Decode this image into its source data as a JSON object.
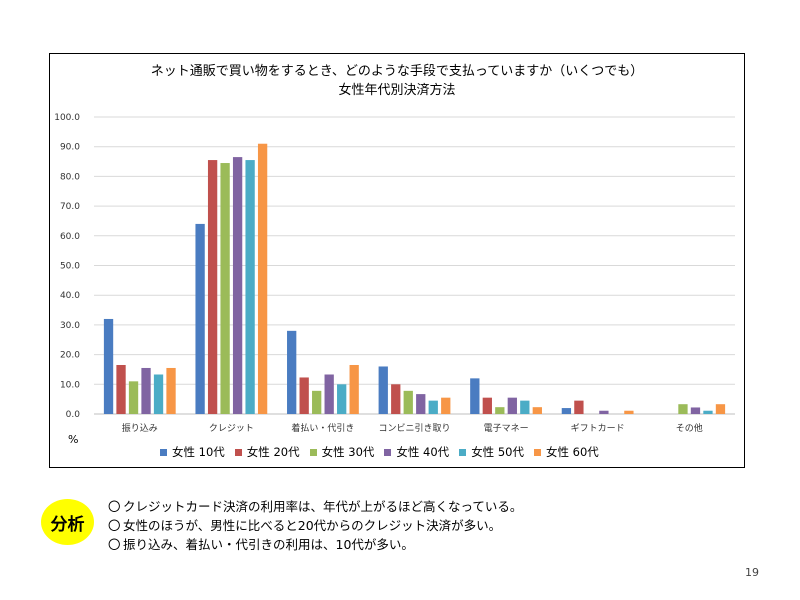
{
  "chart_data": {
    "type": "bar",
    "title": "ネット通販で買い物をするとき、どのような手段で支払っていますか（いくつでも）",
    "subtitle": "女性年代別決済方法",
    "unit_label": "%",
    "ylim": [
      0,
      100
    ],
    "yticks": [
      "0.0",
      "10.0",
      "20.0",
      "30.0",
      "40.0",
      "50.0",
      "60.0",
      "70.0",
      "80.0",
      "90.0",
      "100.0"
    ],
    "grid": true,
    "legend_position": "bottom",
    "categories": [
      "振り込み",
      "クレジット",
      "着払い・代引き",
      "コンビニ引き取り",
      "電子マネー",
      "ギフトカード",
      "その他"
    ],
    "series": [
      {
        "name": "女性 10代",
        "color": "#4a7cc1",
        "values": [
          32.0,
          64.0,
          28.0,
          16.0,
          12.0,
          2.0,
          0.0
        ]
      },
      {
        "name": "女性 20代",
        "color": "#c0504d",
        "values": [
          16.5,
          85.5,
          12.3,
          10.0,
          5.5,
          4.5,
          0.0
        ]
      },
      {
        "name": "女性 30代",
        "color": "#9bbb59",
        "values": [
          11.0,
          84.5,
          7.8,
          7.8,
          2.3,
          0.0,
          3.3
        ]
      },
      {
        "name": "女性 40代",
        "color": "#8064a2",
        "values": [
          15.5,
          86.5,
          13.3,
          6.7,
          5.5,
          1.1,
          2.2
        ]
      },
      {
        "name": "女性 50代",
        "color": "#4bacc6",
        "values": [
          13.3,
          85.5,
          10.0,
          4.5,
          4.5,
          0.0,
          1.1
        ]
      },
      {
        "name": "女性 60代",
        "color": "#f79646",
        "values": [
          15.5,
          91.0,
          16.5,
          5.5,
          2.3,
          1.1,
          3.3
        ]
      }
    ]
  },
  "analysis": {
    "badge": "分析",
    "bullet": "〇",
    "lines": [
      "クレジットカード決済の利用率は、年代が上がるほど高くなっている。",
      "女性のほうが、男性に比べると20代からのクレジット決済が多い。",
      "振り込み、着払い・代引きの利用は、10代が多い。"
    ]
  },
  "page_number": "19"
}
